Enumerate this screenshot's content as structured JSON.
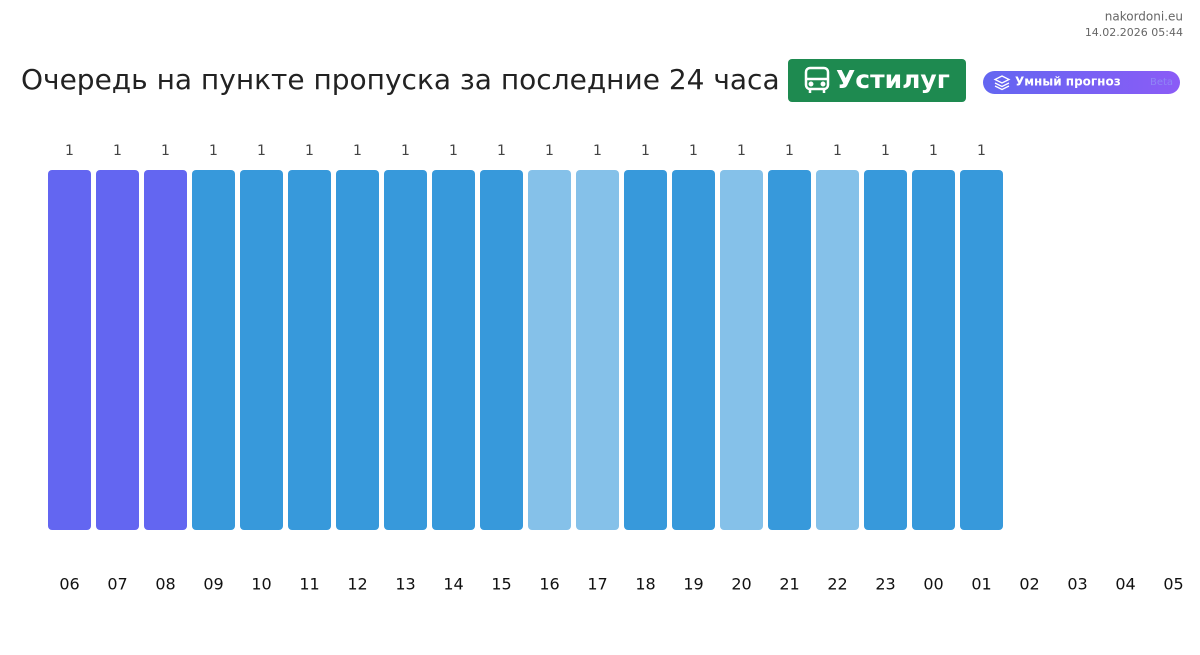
{
  "header": {
    "site": "nakordoni.eu",
    "timestamp": "14.02.2026 05:44"
  },
  "chart_data": {
    "type": "bar",
    "title": "Очередь на пункте пропуска за последние 24 часа",
    "badge": "Устилуг",
    "button": "Умный прогноз",
    "button_tag": "Beta",
    "categories": [
      "06",
      "07",
      "08",
      "09",
      "10",
      "11",
      "12",
      "13",
      "14",
      "15",
      "16",
      "17",
      "18",
      "19",
      "20",
      "21",
      "22",
      "23",
      "00",
      "01",
      "02",
      "03",
      "04",
      "05"
    ],
    "values": [
      1,
      1,
      1,
      1,
      1,
      1,
      1,
      1,
      1,
      1,
      1,
      1,
      1,
      1,
      1,
      1,
      1,
      1,
      1,
      1,
      null,
      null,
      null,
      null
    ],
    "colors": [
      "#6366f1",
      "#6366f1",
      "#6366f1",
      "#3799db",
      "#3799db",
      "#3799db",
      "#3799db",
      "#3799db",
      "#3799db",
      "#3799db",
      "#85c1e9",
      "#85c1e9",
      "#3799db",
      "#3799db",
      "#85c1e9",
      "#3799db",
      "#85c1e9",
      "#3799db",
      "#3799db",
      "#3799db",
      null,
      null,
      null,
      null
    ],
    "ylim": [
      0,
      1
    ]
  }
}
